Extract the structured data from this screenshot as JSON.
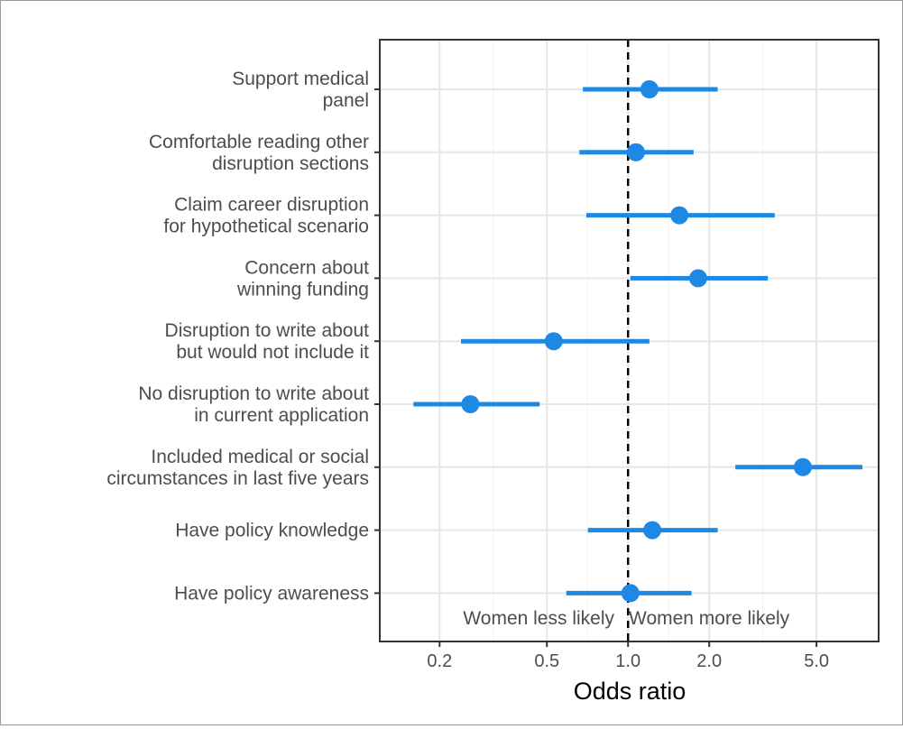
{
  "chart_data": {
    "type": "scatter",
    "subtype": "forest-plot",
    "title": "",
    "xlabel": "Odds ratio",
    "ylabel": "",
    "x_scale": "log",
    "xlim": [
      0.12,
      8.5
    ],
    "x_ticks": [
      0.2,
      0.5,
      1.0,
      2.0,
      5.0
    ],
    "x_tick_labels": [
      "0.2",
      "0.5",
      "1.0",
      "2.0",
      "5.0"
    ],
    "reference_line": 1.0,
    "grid": true,
    "legend": "none",
    "point_color": "#1e88e5",
    "annotations": {
      "left": "Women less likely",
      "right": "Women more likely"
    },
    "categories": [
      {
        "label": [
          "Support medical",
          "panel"
        ],
        "estimate": 1.2,
        "lower": 0.68,
        "upper": 2.15
      },
      {
        "label": [
          "Comfortable reading other",
          "disruption sections"
        ],
        "estimate": 1.07,
        "lower": 0.66,
        "upper": 1.75
      },
      {
        "label": [
          "Claim career disruption",
          "for hypothetical scenario"
        ],
        "estimate": 1.55,
        "lower": 0.7,
        "upper": 3.5
      },
      {
        "label": [
          "Concern about",
          "winning funding"
        ],
        "estimate": 1.82,
        "lower": 1.02,
        "upper": 3.3
      },
      {
        "label": [
          "Disruption to write about",
          "but would not include it"
        ],
        "estimate": 0.53,
        "lower": 0.24,
        "upper": 1.2
      },
      {
        "label": [
          "No disruption to write about",
          "in current application"
        ],
        "estimate": 0.26,
        "lower": 0.16,
        "upper": 0.47
      },
      {
        "label": [
          "Included medical or social",
          "circumstances in last five years"
        ],
        "estimate": 4.45,
        "lower": 2.5,
        "upper": 7.4
      },
      {
        "label": [
          "Have policy knowledge"
        ],
        "estimate": 1.23,
        "lower": 0.71,
        "upper": 2.15
      },
      {
        "label": [
          "Have policy awareness"
        ],
        "estimate": 1.02,
        "lower": 0.59,
        "upper": 1.72
      }
    ]
  }
}
